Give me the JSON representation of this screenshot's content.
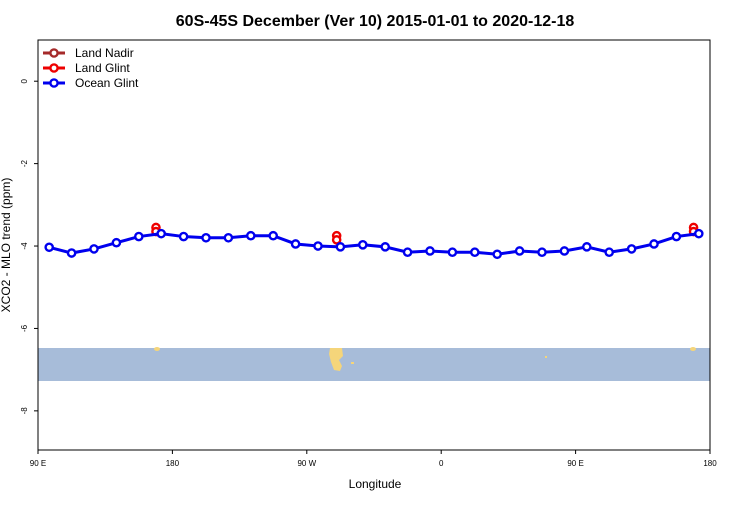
{
  "chart_data": {
    "type": "line",
    "title": "60S-45S December (Ver 10)   2015-01-01 to 2020-12-18",
    "x_label": "Longitude",
    "y_label": "XCO2 - MLO trend (ppm)",
    "xlim": [
      90,
      540
    ],
    "ylim": [
      -8.95,
      1.0
    ],
    "xticks": [
      {
        "value": 90,
        "label": "90 E"
      },
      {
        "value": 180,
        "label": "180"
      },
      {
        "value": 270,
        "label": "90 W"
      },
      {
        "value": 360,
        "label": "0"
      },
      {
        "value": 450,
        "label": "90 E"
      },
      {
        "value": 540,
        "label": "180"
      }
    ],
    "yticks": [
      0,
      -2,
      -4,
      -6,
      -8
    ],
    "legend_position": "top-left",
    "series": [
      {
        "name": "Land Nadir",
        "color": "#a52a2a",
        "connect": true,
        "x": [],
        "values": []
      },
      {
        "name": "Land Glint",
        "color": "#ee0000",
        "connect": false,
        "x": [
          169,
          169,
          290,
          290,
          529,
          529
        ],
        "values": [
          -3.55,
          -3.65,
          -3.75,
          -3.85,
          -3.55,
          -3.65
        ]
      },
      {
        "name": "Ocean Glint",
        "color": "#0000ee",
        "connect": true,
        "x": [
          97.5,
          112.5,
          127.5,
          142.5,
          157.5,
          172.5,
          187.5,
          202.5,
          217.5,
          232.5,
          247.5,
          262.5,
          277.5,
          292.5,
          307.5,
          322.5,
          337.5,
          352.5,
          367.5,
          382.5,
          397.5,
          412.5,
          427.5,
          442.5,
          457.5,
          472.5,
          487.5,
          502.5,
          517.5,
          532.5
        ],
        "values": [
          -4.03,
          -4.17,
          -4.07,
          -3.92,
          -3.77,
          -3.7,
          -3.77,
          -3.8,
          -3.8,
          -3.75,
          -3.75,
          -3.95,
          -4.0,
          -4.02,
          -3.97,
          -4.02,
          -4.15,
          -4.12,
          -4.15,
          -4.15,
          -4.2,
          -4.12,
          -4.15,
          -4.12,
          -4.02,
          -4.15,
          -4.07,
          -3.95,
          -3.77,
          -3.7
        ]
      }
    ]
  }
}
